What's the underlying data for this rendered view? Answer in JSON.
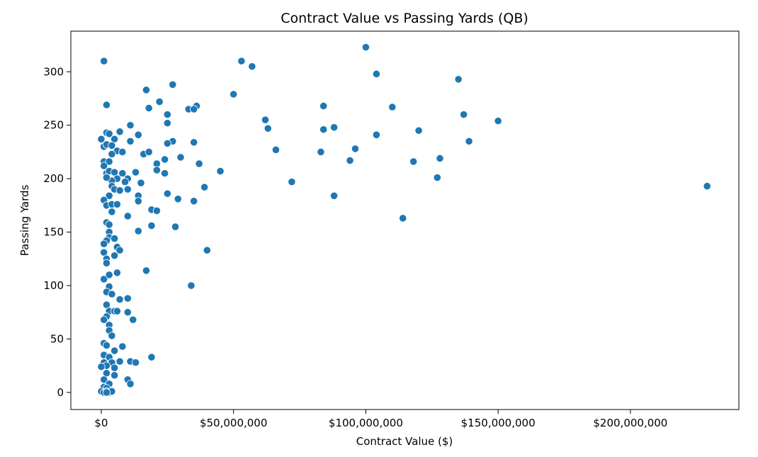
{
  "chart_data": {
    "type": "scatter",
    "title": "Contract Value vs Passing Yards (QB)",
    "xlabel": "Contract Value ($)",
    "ylabel": "Passing Yards",
    "xlim": [
      -11500000,
      241000000
    ],
    "ylim": [
      -16,
      338
    ],
    "xticks": [
      0,
      50000000,
      100000000,
      150000000,
      200000000
    ],
    "xtick_labels": [
      "$0",
      "$50,000,000",
      "$100,000,000",
      "$150,000,000",
      "$200,000,000"
    ],
    "yticks": [
      0,
      50,
      100,
      150,
      200,
      250,
      300
    ],
    "ytick_labels": [
      "0",
      "50",
      "100",
      "150",
      "200",
      "250",
      "300"
    ],
    "grid": false,
    "color": "#1f77b4",
    "points": [
      [
        100000000,
        323
      ],
      [
        53000000,
        310
      ],
      [
        57000000,
        305
      ],
      [
        104000000,
        298
      ],
      [
        50000000,
        279
      ],
      [
        135000000,
        293
      ],
      [
        84000000,
        268
      ],
      [
        110000000,
        267
      ],
      [
        137000000,
        260
      ],
      [
        150000000,
        254
      ],
      [
        62000000,
        255
      ],
      [
        63000000,
        247
      ],
      [
        84000000,
        246
      ],
      [
        88000000,
        248
      ],
      [
        104000000,
        241
      ],
      [
        120000000,
        245
      ],
      [
        139000000,
        235
      ],
      [
        66000000,
        227
      ],
      [
        83000000,
        225
      ],
      [
        96000000,
        228
      ],
      [
        94000000,
        217
      ],
      [
        118000000,
        216
      ],
      [
        128000000,
        219
      ],
      [
        127000000,
        201
      ],
      [
        72000000,
        197
      ],
      [
        88000000,
        184
      ],
      [
        114000000,
        163
      ],
      [
        229000000,
        193
      ],
      [
        27000000,
        288
      ],
      [
        17000000,
        283
      ],
      [
        22000000,
        272
      ],
      [
        36000000,
        268
      ],
      [
        33000000,
        265
      ],
      [
        35000000,
        265
      ],
      [
        18000000,
        266
      ],
      [
        25000000,
        260
      ],
      [
        25000000,
        252
      ],
      [
        11000000,
        250
      ],
      [
        14000000,
        241
      ],
      [
        27000000,
        235
      ],
      [
        25000000,
        233
      ],
      [
        35000000,
        234
      ],
      [
        11000000,
        235
      ],
      [
        16000000,
        223
      ],
      [
        18000000,
        225
      ],
      [
        24000000,
        218
      ],
      [
        30000000,
        220
      ],
      [
        21000000,
        214
      ],
      [
        37000000,
        214
      ],
      [
        45000000,
        207
      ],
      [
        24000000,
        205
      ],
      [
        21000000,
        208
      ],
      [
        13000000,
        206
      ],
      [
        10000000,
        200
      ],
      [
        10000000,
        190
      ],
      [
        15000000,
        196
      ],
      [
        25000000,
        186
      ],
      [
        29000000,
        181
      ],
      [
        35000000,
        179
      ],
      [
        39000000,
        192
      ],
      [
        14000000,
        184
      ],
      [
        14000000,
        179
      ],
      [
        19000000,
        171
      ],
      [
        21000000,
        170
      ],
      [
        10000000,
        165
      ],
      [
        19000000,
        156
      ],
      [
        28000000,
        155
      ],
      [
        14000000,
        151
      ],
      [
        40000000,
        133
      ],
      [
        17000000,
        114
      ],
      [
        34000000,
        100
      ],
      [
        10000000,
        88
      ],
      [
        7000000,
        87
      ],
      [
        10000000,
        75
      ],
      [
        12000000,
        68
      ],
      [
        8000000,
        43
      ],
      [
        19000000,
        33
      ],
      [
        11000000,
        29
      ],
      [
        13000000,
        28
      ],
      [
        7000000,
        29
      ],
      [
        10000000,
        12
      ],
      [
        11000000,
        8
      ],
      [
        1000000,
        310
      ],
      [
        2000000,
        269
      ],
      [
        2000000,
        243
      ],
      [
        3000000,
        242
      ],
      [
        5000000,
        237
      ],
      [
        7000000,
        244
      ],
      [
        0,
        237
      ],
      [
        1000000,
        230
      ],
      [
        2000000,
        232
      ],
      [
        4000000,
        231
      ],
      [
        6000000,
        226
      ],
      [
        8000000,
        225
      ],
      [
        1000000,
        216
      ],
      [
        3000000,
        216
      ],
      [
        1000000,
        212
      ],
      [
        4000000,
        223
      ],
      [
        2000000,
        205
      ],
      [
        3000000,
        207
      ],
      [
        5000000,
        206
      ],
      [
        8000000,
        205
      ],
      [
        6000000,
        200
      ],
      [
        4000000,
        198
      ],
      [
        2000000,
        201
      ],
      [
        9000000,
        197
      ],
      [
        4000000,
        193
      ],
      [
        5000000,
        190
      ],
      [
        7000000,
        189
      ],
      [
        3000000,
        184
      ],
      [
        1000000,
        180
      ],
      [
        2000000,
        175
      ],
      [
        4000000,
        176
      ],
      [
        6000000,
        176
      ],
      [
        4000000,
        169
      ],
      [
        2000000,
        159
      ],
      [
        3000000,
        157
      ],
      [
        3000000,
        150
      ],
      [
        3000000,
        145
      ],
      [
        5000000,
        144
      ],
      [
        2000000,
        142
      ],
      [
        1000000,
        139
      ],
      [
        6000000,
        136
      ],
      [
        7000000,
        133
      ],
      [
        1000000,
        131
      ],
      [
        2000000,
        125
      ],
      [
        5000000,
        128
      ],
      [
        2000000,
        121
      ],
      [
        1000000,
        106
      ],
      [
        3000000,
        110
      ],
      [
        6000000,
        112
      ],
      [
        3000000,
        99
      ],
      [
        2000000,
        94
      ],
      [
        4000000,
        92
      ],
      [
        2000000,
        82
      ],
      [
        3000000,
        76
      ],
      [
        5000000,
        76
      ],
      [
        6000000,
        76
      ],
      [
        2000000,
        71
      ],
      [
        1000000,
        68
      ],
      [
        3000000,
        63
      ],
      [
        3000000,
        58
      ],
      [
        4000000,
        53
      ],
      [
        1000000,
        46
      ],
      [
        2000000,
        44
      ],
      [
        5000000,
        39
      ],
      [
        1000000,
        35
      ],
      [
        3000000,
        33
      ],
      [
        1000000,
        28
      ],
      [
        4000000,
        28
      ],
      [
        2000000,
        25
      ],
      [
        0,
        24
      ],
      [
        5000000,
        23
      ],
      [
        2000000,
        18
      ],
      [
        5000000,
        16
      ],
      [
        1000000,
        12
      ],
      [
        3000000,
        8
      ],
      [
        1000000,
        5
      ],
      [
        2000000,
        4
      ],
      [
        0,
        1
      ],
      [
        1000000,
        0
      ],
      [
        2000000,
        1
      ],
      [
        3000000,
        0
      ],
      [
        4000000,
        1
      ],
      [
        2000000,
        0
      ]
    ]
  }
}
